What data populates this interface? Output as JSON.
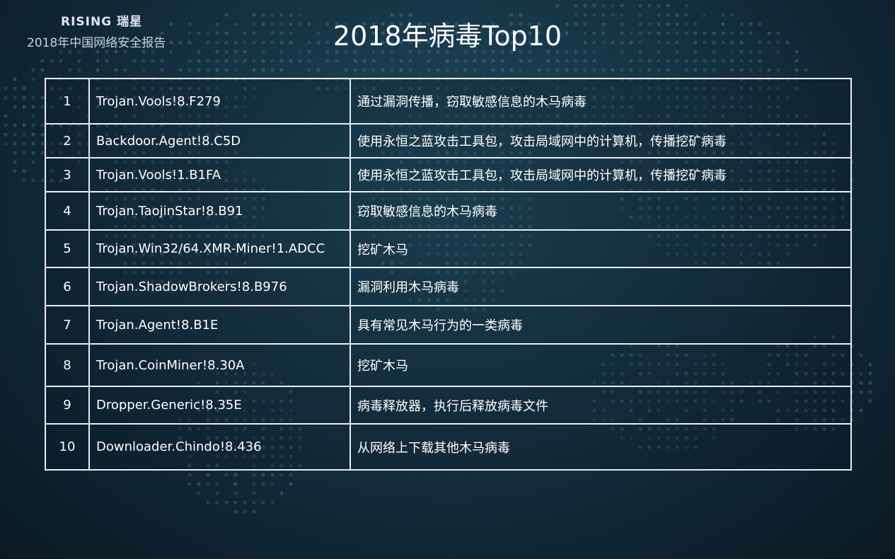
{
  "header": {
    "brand_logo": "RISING 瑞星",
    "subtitle": "2018年中国网络安全报告"
  },
  "page_title": "2018年病毒Top10",
  "table": {
    "rows": [
      {
        "rank": "1",
        "name": "Trojan.Vools!8.F279",
        "description": "通过漏洞传播，窃取敏感信息的木马病毒"
      },
      {
        "rank": "2",
        "name": "Backdoor.Agent!8.C5D",
        "description": "使用永恒之蓝攻击工具包，攻击局域网中的计算机，传播挖矿病毒"
      },
      {
        "rank": "3",
        "name": "Trojan.Vools!1.B1FA",
        "description": "使用永恒之蓝攻击工具包，攻击局域网中的计算机，传播挖矿病毒"
      },
      {
        "rank": "4",
        "name": "Trojan.TaojinStar!8.B91",
        "description": "窃取敏感信息的木马病毒"
      },
      {
        "rank": "5",
        "name": "Trojan.Win32/64.XMR-Miner!1.ADCC",
        "description": "挖矿木马"
      },
      {
        "rank": "6",
        "name": "Trojan.ShadowBrokers!8.B976",
        "description": "漏洞利用木马病毒"
      },
      {
        "rank": "7",
        "name": "Trojan.Agent!8.B1E",
        "description": "具有常见木马行为的一类病毒"
      },
      {
        "rank": "8",
        "name": "Trojan.CoinMiner!8.30A",
        "description": "挖矿木马"
      },
      {
        "rank": "9",
        "name": "Dropper.Generic!8.35E",
        "description": "病毒释放器，执行后释放病毒文件"
      },
      {
        "rank": "10",
        "name": "Downloader.Chindo!8.436",
        "description": "从网络上下载其他木马病毒"
      }
    ]
  },
  "colors": {
    "background": "#17384a",
    "text": "#ffffff",
    "border": "#e8eef2"
  }
}
